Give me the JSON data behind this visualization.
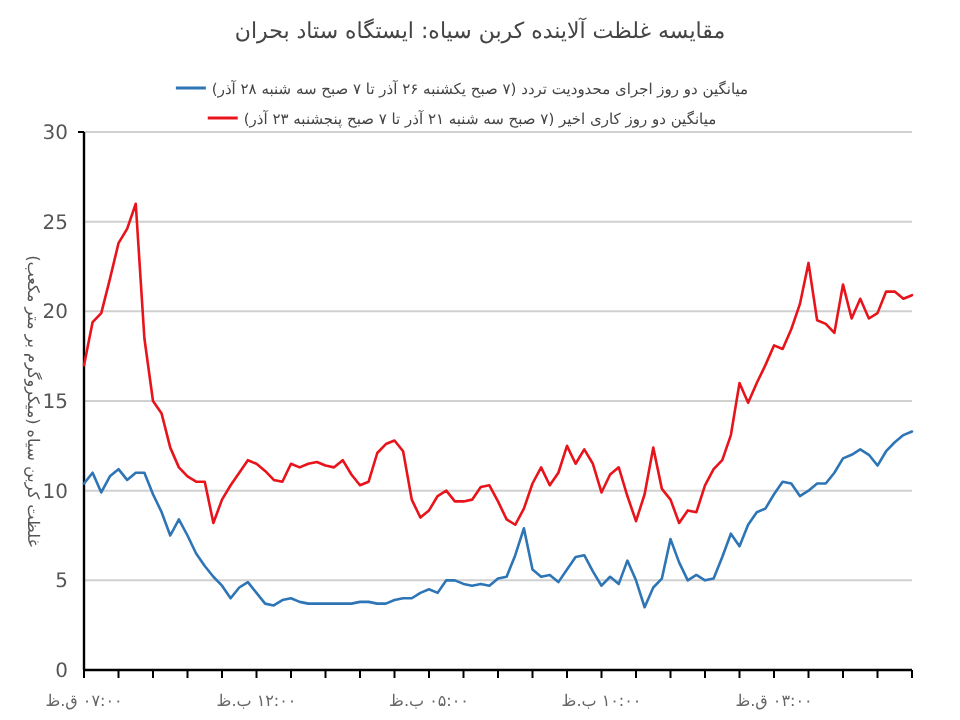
{
  "chart_data": {
    "type": "line",
    "title": "مقایسه غلظت آلاینده کربن سیاه: ایستگاه ستاد بحران",
    "ylabel": "غلظت کربن سیاه (میکروگرم بر متر مکعب)",
    "legend": "top",
    "grid": "y",
    "marker": "none",
    "line_style": "solid",
    "ylim": [
      0,
      30
    ],
    "yticks": [
      0,
      5,
      10,
      15,
      20,
      25,
      30
    ],
    "categories": [
      "۰۷:۰۰ ق.ظ",
      null,
      null,
      null,
      null,
      null,
      null,
      null,
      null,
      null,
      null,
      null,
      null,
      null,
      null,
      null,
      null,
      null,
      null,
      null,
      "۱۲:۰۰ ب.ظ",
      null,
      null,
      null,
      null,
      null,
      null,
      null,
      null,
      null,
      null,
      null,
      null,
      null,
      null,
      null,
      null,
      null,
      null,
      null,
      "۰۵:۰۰ ب.ظ",
      null,
      null,
      null,
      null,
      null,
      null,
      null,
      null,
      null,
      null,
      null,
      null,
      null,
      null,
      null,
      null,
      null,
      null,
      null,
      "۱۰:۰۰ ب.ظ",
      null,
      null,
      null,
      null,
      null,
      null,
      null,
      null,
      null,
      null,
      null,
      null,
      null,
      null,
      null,
      null,
      null,
      null,
      null,
      "۰۳:۰۰ ق.ظ",
      null,
      null,
      null,
      null,
      null,
      null,
      null,
      null,
      null,
      null,
      null,
      null,
      null,
      null,
      null,
      null
    ],
    "series": [
      {
        "name": "میانگین دو روز اجرای محدودیت تردد (۷ صبح یکشنبه ۲۶ آذر تا ۷ صبح سه شنبه ۲۸ آذر)",
        "color": "#2e75b6",
        "values": [
          10.4,
          11.0,
          9.9,
          10.8,
          11.2,
          10.6,
          11.0,
          11.0,
          9.8,
          8.8,
          7.5,
          8.4,
          7.5,
          6.5,
          5.8,
          5.2,
          4.7,
          4.0,
          4.6,
          4.9,
          4.3,
          3.7,
          3.6,
          3.9,
          4.0,
          3.8,
          3.7,
          3.7,
          3.7,
          3.7,
          3.7,
          3.7,
          3.8,
          3.8,
          3.7,
          3.7,
          3.9,
          4.0,
          4.0,
          4.3,
          4.5,
          4.3,
          5.0,
          5.0,
          4.8,
          4.7,
          4.8,
          4.7,
          5.1,
          5.2,
          6.4,
          7.9,
          5.6,
          5.2,
          5.3,
          4.9,
          5.6,
          6.3,
          6.4,
          5.5,
          4.7,
          5.2,
          4.8,
          6.1,
          5.0,
          3.5,
          4.6,
          5.1,
          7.3,
          6.0,
          5.0,
          5.3,
          5.0,
          5.1,
          6.3,
          7.6,
          6.9,
          8.1,
          8.8,
          9.0,
          9.8,
          10.5,
          10.4,
          9.7,
          10.0,
          10.4,
          10.4,
          11.0,
          11.8,
          12.0,
          12.3,
          12.0,
          11.4,
          12.2,
          12.7,
          13.1,
          13.3
        ]
      },
      {
        "name": "میانگین دو روز کاری اخیر (۷ صبح سه شنبه ۲۱ آذر تا ۷ صبح پنجشنبه ۲۳ آذر)",
        "color": "#e8141c",
        "values": [
          17.0,
          19.4,
          19.9,
          21.8,
          23.8,
          24.6,
          26.0,
          18.5,
          15.0,
          14.3,
          12.4,
          11.3,
          10.8,
          10.5,
          10.5,
          8.2,
          9.5,
          10.3,
          11.0,
          11.7,
          11.5,
          11.1,
          10.6,
          10.5,
          11.5,
          11.3,
          11.5,
          11.6,
          11.4,
          11.3,
          11.7,
          10.9,
          10.3,
          10.5,
          12.1,
          12.6,
          12.8,
          12.2,
          9.5,
          8.5,
          8.9,
          9.7,
          10.0,
          9.4,
          9.4,
          9.5,
          10.2,
          10.3,
          9.4,
          8.4,
          8.1,
          9.0,
          10.4,
          11.3,
          10.3,
          11.0,
          12.5,
          11.5,
          12.3,
          11.5,
          9.9,
          10.9,
          11.3,
          9.7,
          8.3,
          9.8,
          12.4,
          10.1,
          9.5,
          8.2,
          8.9,
          8.8,
          10.3,
          11.2,
          11.7,
          13.1,
          16.0,
          14.9,
          16.0,
          17.0,
          18.1,
          17.9,
          19.0,
          20.4,
          22.7,
          19.5,
          19.3,
          18.8,
          21.5,
          19.6,
          20.7,
          19.6,
          19.9,
          21.1,
          21.1,
          20.7,
          20.9
        ]
      }
    ]
  }
}
